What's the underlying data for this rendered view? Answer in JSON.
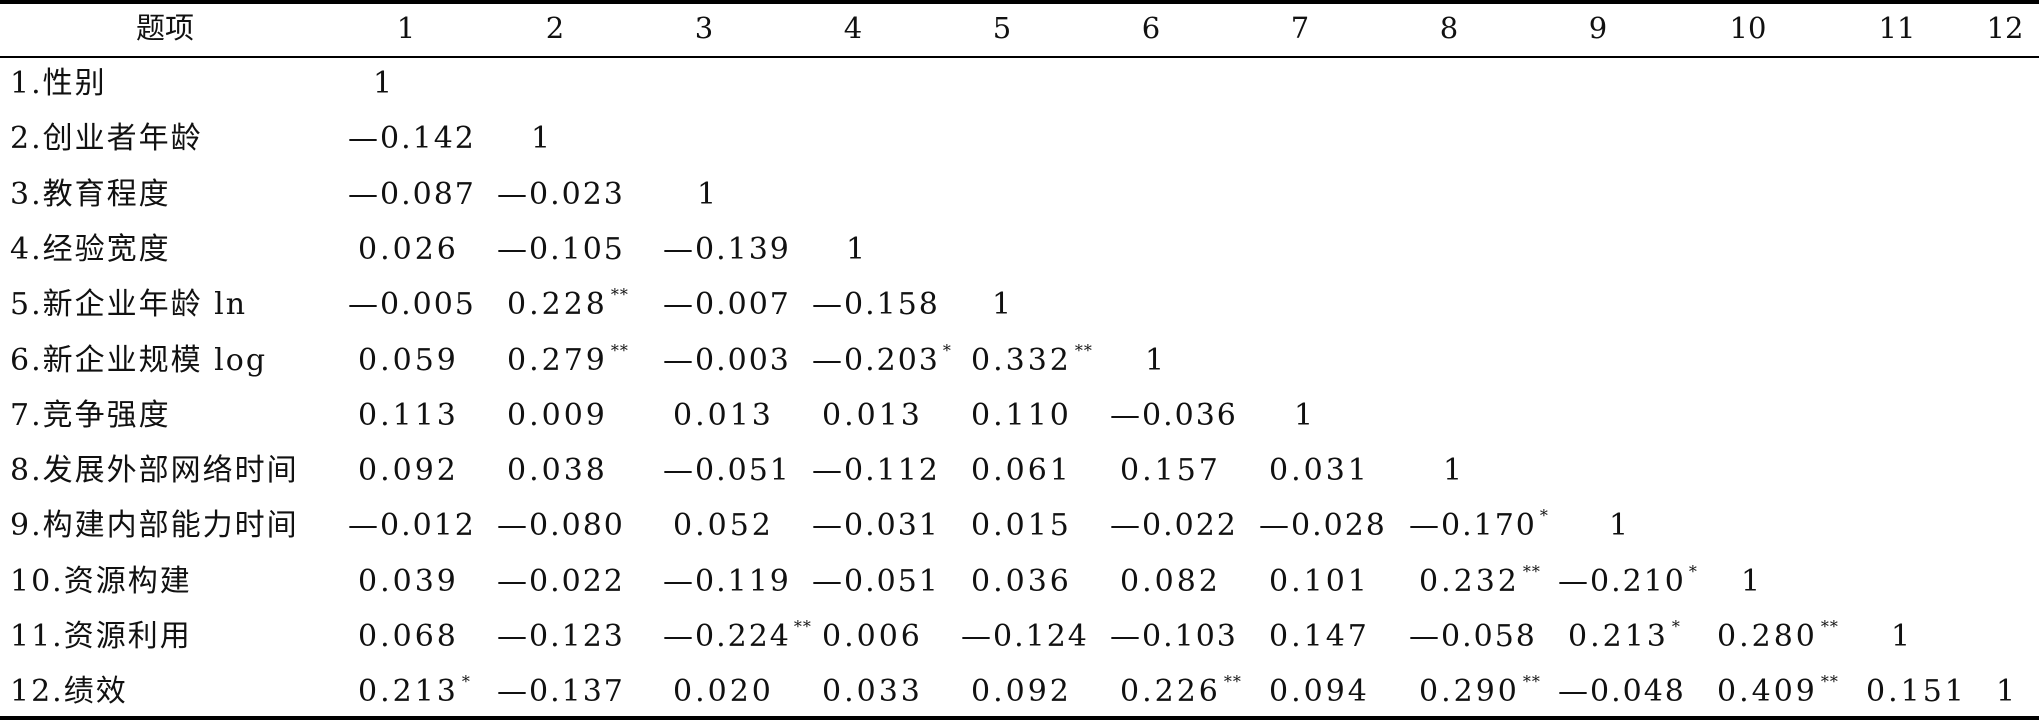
{
  "table": {
    "header": [
      "题项",
      "1",
      "2",
      "3",
      "4",
      "5",
      "6",
      "7",
      "8",
      "9",
      "10",
      "11",
      "12"
    ],
    "rows": [
      {
        "label": "1.性别",
        "cells": [
          {
            "v": "1",
            "s": ""
          }
        ]
      },
      {
        "label": "2.创业者年龄",
        "cells": [
          {
            "v": "—0.142",
            "s": ""
          },
          {
            "v": "1",
            "s": ""
          }
        ]
      },
      {
        "label": "3.教育程度",
        "cells": [
          {
            "v": "—0.087",
            "s": ""
          },
          {
            "v": "—0.023",
            "s": ""
          },
          {
            "v": "1",
            "s": ""
          }
        ]
      },
      {
        "label": "4.经验宽度",
        "cells": [
          {
            "v": "0.026",
            "s": ""
          },
          {
            "v": "—0.105",
            "s": ""
          },
          {
            "v": "—0.139",
            "s": ""
          },
          {
            "v": "1",
            "s": ""
          }
        ]
      },
      {
        "label": "5.新企业年龄 ln",
        "cells": [
          {
            "v": "—0.005",
            "s": ""
          },
          {
            "v": "0.228",
            "s": "**"
          },
          {
            "v": "—0.007",
            "s": ""
          },
          {
            "v": "—0.158",
            "s": ""
          },
          {
            "v": "1",
            "s": ""
          }
        ]
      },
      {
        "label": "6.新企业规模 log",
        "cells": [
          {
            "v": "0.059",
            "s": ""
          },
          {
            "v": "0.279",
            "s": "**"
          },
          {
            "v": "—0.003",
            "s": ""
          },
          {
            "v": "—0.203",
            "s": "*"
          },
          {
            "v": "0.332",
            "s": "**"
          },
          {
            "v": "1",
            "s": ""
          }
        ]
      },
      {
        "label": "7.竞争强度",
        "cells": [
          {
            "v": "0.113",
            "s": ""
          },
          {
            "v": "0.009",
            "s": ""
          },
          {
            "v": "0.013",
            "s": ""
          },
          {
            "v": "0.013",
            "s": ""
          },
          {
            "v": "0.110",
            "s": ""
          },
          {
            "v": "—0.036",
            "s": ""
          },
          {
            "v": "1",
            "s": ""
          }
        ]
      },
      {
        "label": "8.发展外部网络时间",
        "cells": [
          {
            "v": "0.092",
            "s": ""
          },
          {
            "v": "0.038",
            "s": ""
          },
          {
            "v": "—0.051",
            "s": ""
          },
          {
            "v": "—0.112",
            "s": ""
          },
          {
            "v": "0.061",
            "s": ""
          },
          {
            "v": "0.157",
            "s": ""
          },
          {
            "v": "0.031",
            "s": ""
          },
          {
            "v": "1",
            "s": ""
          }
        ]
      },
      {
        "label": "9.构建内部能力时间",
        "cells": [
          {
            "v": "—0.012",
            "s": ""
          },
          {
            "v": "—0.080",
            "s": ""
          },
          {
            "v": "0.052",
            "s": ""
          },
          {
            "v": "—0.031",
            "s": ""
          },
          {
            "v": "0.015",
            "s": ""
          },
          {
            "v": "—0.022",
            "s": ""
          },
          {
            "v": "—0.028",
            "s": ""
          },
          {
            "v": "—0.170",
            "s": "*"
          },
          {
            "v": "1",
            "s": ""
          }
        ]
      },
      {
        "label": "10.资源构建",
        "cells": [
          {
            "v": "0.039",
            "s": ""
          },
          {
            "v": "—0.022",
            "s": ""
          },
          {
            "v": "—0.119",
            "s": ""
          },
          {
            "v": "—0.051",
            "s": ""
          },
          {
            "v": "0.036",
            "s": ""
          },
          {
            "v": "0.082",
            "s": ""
          },
          {
            "v": "0.101",
            "s": ""
          },
          {
            "v": "0.232",
            "s": "**"
          },
          {
            "v": "—0.210",
            "s": "*"
          },
          {
            "v": "1",
            "s": ""
          }
        ]
      },
      {
        "label": "11.资源利用",
        "cells": [
          {
            "v": "0.068",
            "s": ""
          },
          {
            "v": "—0.123",
            "s": ""
          },
          {
            "v": "—0.224",
            "s": "**"
          },
          {
            "v": "0.006",
            "s": ""
          },
          {
            "v": "—0.124",
            "s": ""
          },
          {
            "v": "—0.103",
            "s": ""
          },
          {
            "v": "0.147",
            "s": ""
          },
          {
            "v": "—0.058",
            "s": ""
          },
          {
            "v": "0.213",
            "s": "*"
          },
          {
            "v": "0.280",
            "s": "**"
          },
          {
            "v": "1",
            "s": ""
          }
        ]
      },
      {
        "label": "12.绩效",
        "cells": [
          {
            "v": "0.213",
            "s": "*"
          },
          {
            "v": "—0.137",
            "s": ""
          },
          {
            "v": "0.020",
            "s": ""
          },
          {
            "v": "0.033",
            "s": ""
          },
          {
            "v": "0.092",
            "s": ""
          },
          {
            "v": "0.226",
            "s": "**"
          },
          {
            "v": "0.094",
            "s": ""
          },
          {
            "v": "0.290",
            "s": "**"
          },
          {
            "v": "—0.048",
            "s": ""
          },
          {
            "v": "0.409",
            "s": "**"
          },
          {
            "v": "0.151",
            "s": ""
          },
          {
            "v": "1",
            "s": ""
          }
        ]
      }
    ]
  }
}
